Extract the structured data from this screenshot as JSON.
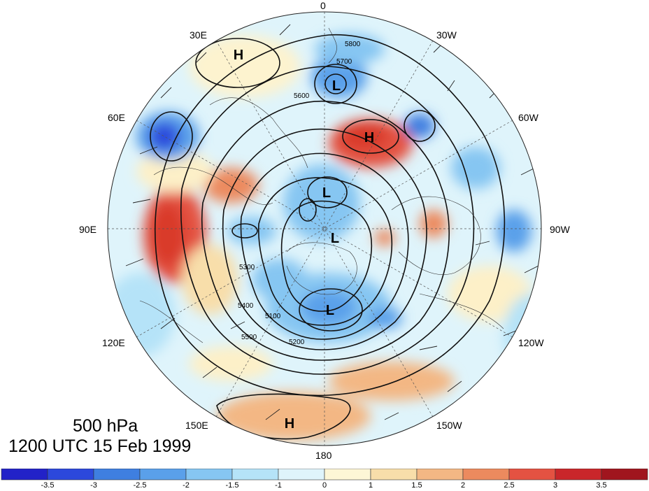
{
  "map": {
    "projection": "north polar stereographic",
    "longitude_labels": {
      "top": "0",
      "top_left": "30E",
      "top_right": "30W",
      "upper_left": "60E",
      "upper_right": "60W",
      "left": "90E",
      "right": "90W",
      "lower_left": "120E",
      "lower_right": "120W",
      "bottom_left": "150E",
      "bottom_right": "150W",
      "bottom": "180"
    },
    "pressure_centers": [
      {
        "symbol": "H",
        "location": "Europe/Scandinavia"
      },
      {
        "symbol": "L",
        "location": "North Atlantic"
      },
      {
        "symbol": "H",
        "location": "North Atlantic"
      },
      {
        "symbol": "L",
        "location": "Arctic Ocean"
      },
      {
        "symbol": "L",
        "location": "Arctic Canada"
      },
      {
        "symbol": "L",
        "location": "Bering Sea"
      },
      {
        "symbol": "H",
        "location": "North Pacific"
      }
    ],
    "contour_labels": [
      "5800",
      "5700",
      "5600",
      "5500",
      "5400",
      "5300",
      "5200",
      "5100"
    ],
    "colors": {
      "warm": "#d93a2b",
      "cool": "#3f7fe0"
    }
  },
  "title": {
    "line1": "500 hPa",
    "line2": "1200 UTC 15 Feb 1999"
  },
  "colorbar": {
    "labels": [
      "-3.5",
      "-3",
      "-2.5",
      "-2",
      "-1.5",
      "-1",
      "0",
      "1",
      "1.5",
      "2",
      "2.5",
      "3",
      "3.5"
    ],
    "colors": [
      "#2222c8",
      "#2c48dc",
      "#3f7fe0",
      "#5aa0ea",
      "#86c6f2",
      "#b5e3f8",
      "#dff4fb",
      "#fdf6d6",
      "#f8deaa",
      "#f3b784",
      "#ec8a5e",
      "#e45242",
      "#c9262a",
      "#a0151e"
    ]
  }
}
